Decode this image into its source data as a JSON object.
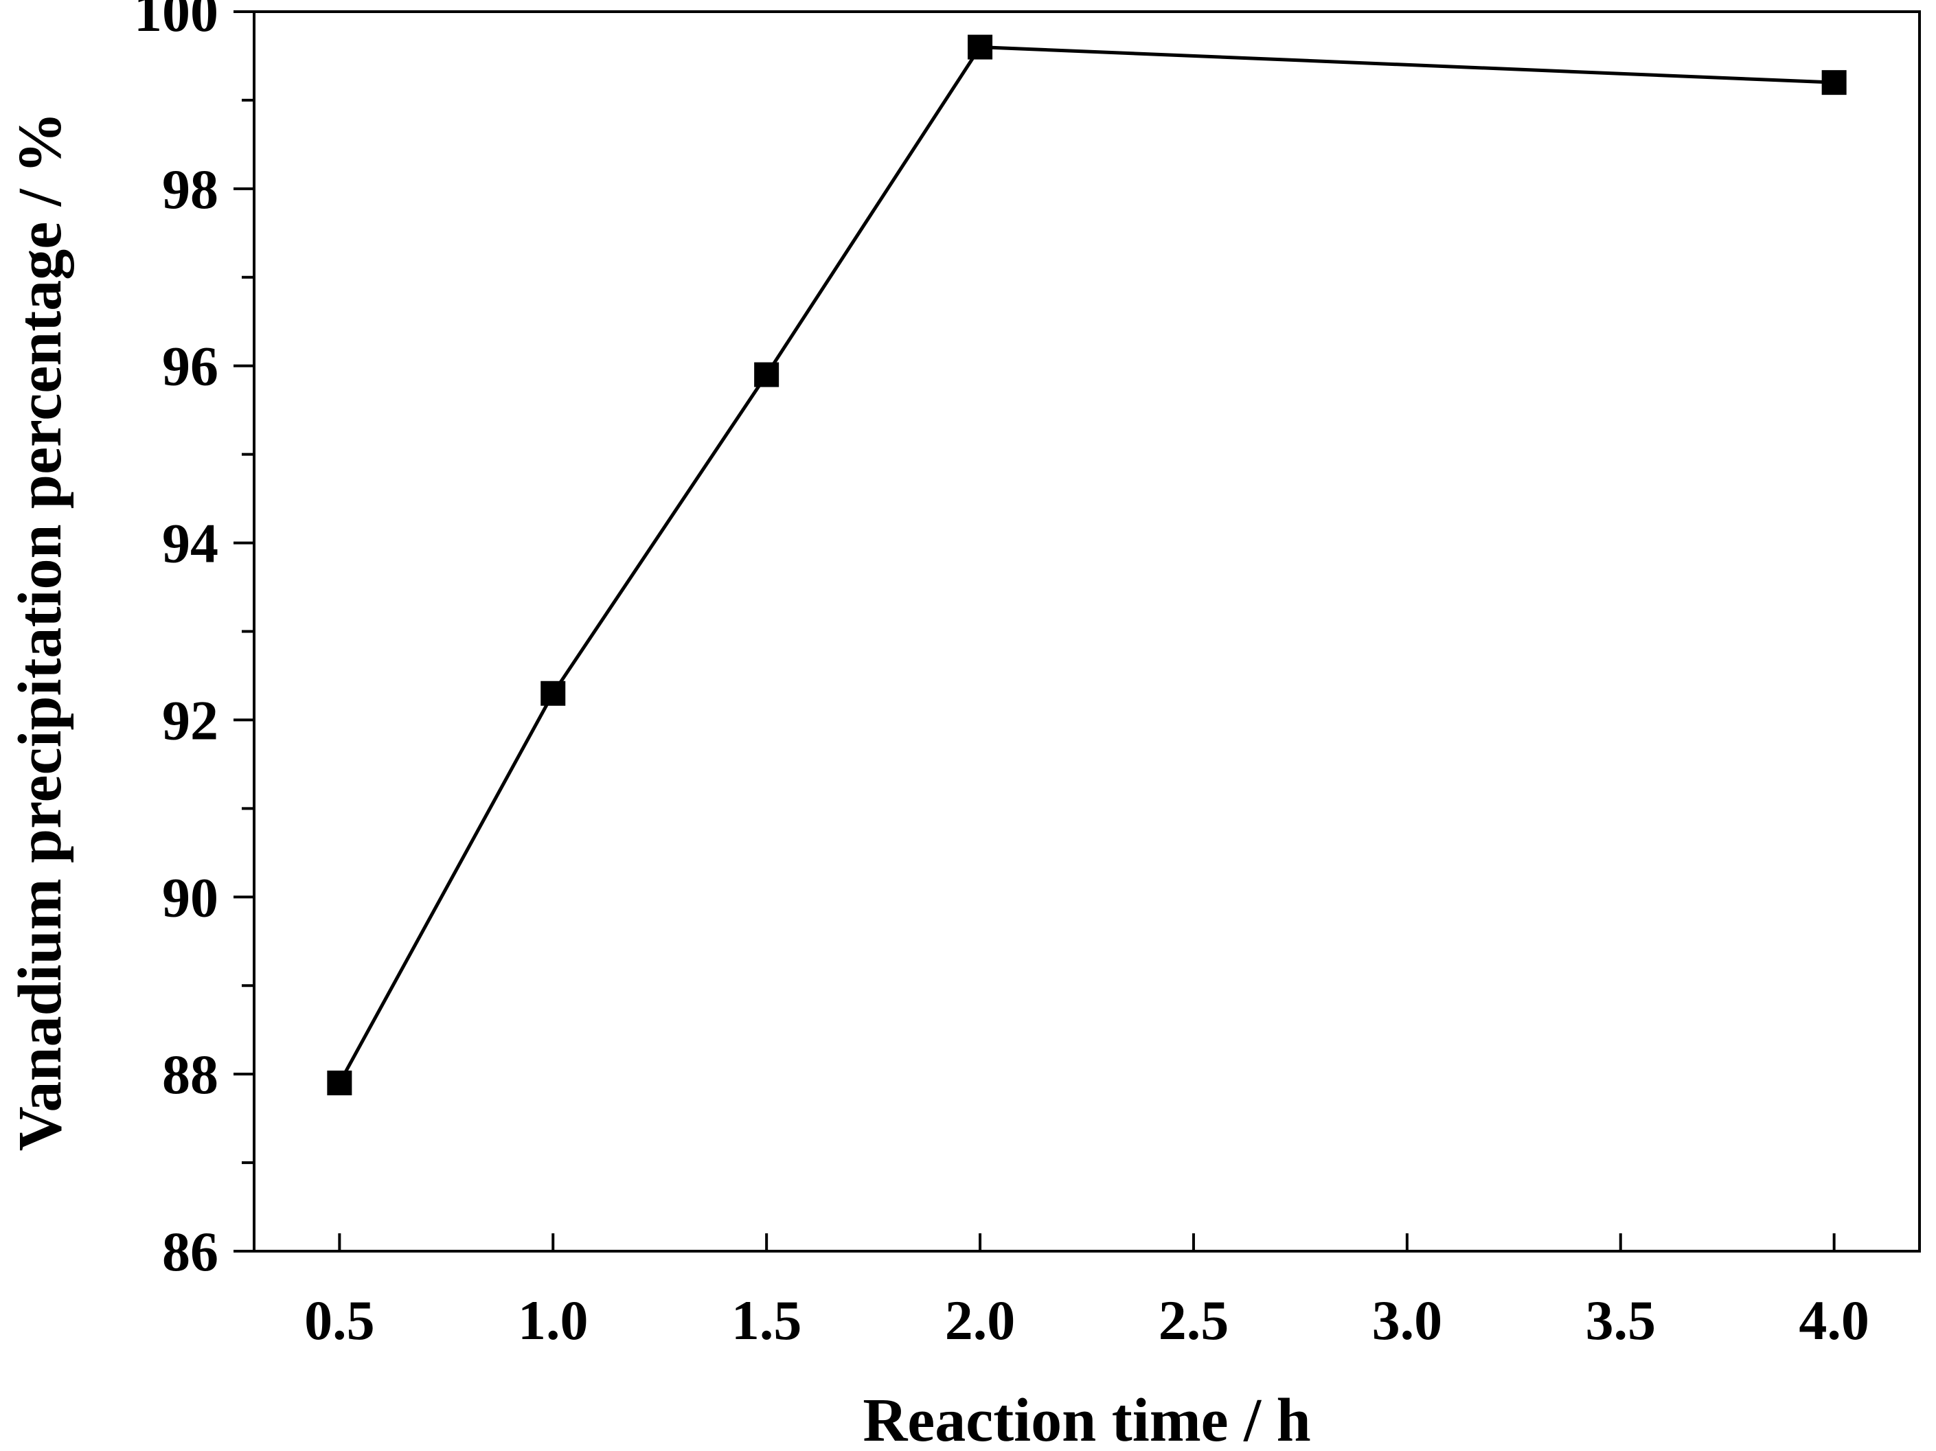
{
  "chart_data": {
    "type": "line",
    "title": "",
    "xlabel": "Reaction time / h",
    "ylabel": "Vanadium precipitation percentage / %",
    "xlim": [
      0.3,
      4.2
    ],
    "ylim": [
      86,
      100
    ],
    "x_ticks": [
      "0.5",
      "1.0",
      "1.5",
      "2.0",
      "2.5",
      "3.0",
      "3.5",
      "4.0"
    ],
    "y_ticks": [
      "86",
      "88",
      "90",
      "92",
      "94",
      "96",
      "98",
      "100"
    ],
    "grid": false,
    "legend": "none",
    "marker": "square",
    "series": [
      {
        "x": [
          0.5,
          1.0,
          1.5,
          2.0,
          4.0
        ],
        "y": [
          87.9,
          92.3,
          95.9,
          99.6,
          99.2
        ]
      }
    ],
    "colors": {
      "line": "#000000",
      "marker": "#000000",
      "axis": "#000000"
    }
  }
}
